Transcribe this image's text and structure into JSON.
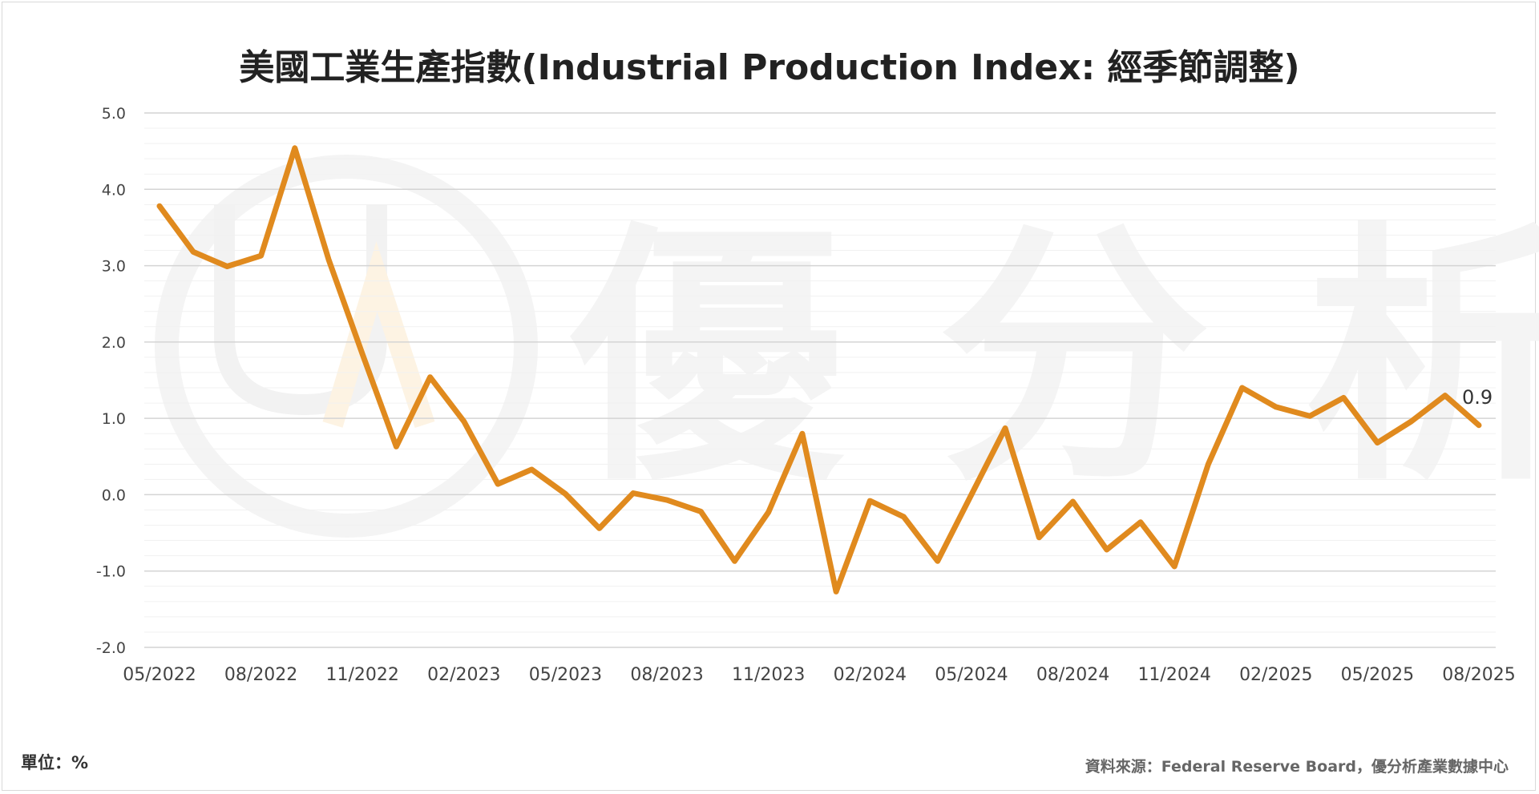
{
  "chart_data": {
    "type": "line",
    "title": "美國工業生產指數(Industrial Production Index: 經季節調整)",
    "unit_label": "單位：%",
    "source": "資料來源：Federal Reserve Board，優分析產業數據中心",
    "watermark_text": "優 分 析",
    "series": [
      {
        "values": [
          3.78,
          3.18,
          2.99,
          3.13,
          4.54,
          3.08,
          1.84,
          0.63,
          1.54,
          0.96,
          0.14,
          0.33,
          0.01,
          -0.44,
          0.02,
          -0.07,
          -0.22,
          -0.87,
          -0.23,
          0.8,
          -1.27,
          -0.08,
          -0.29,
          -0.87,
          0.0,
          0.87,
          -0.56,
          -0.09,
          -0.72,
          -0.36,
          -0.94,
          0.4,
          1.4,
          1.15,
          1.03,
          1.27,
          0.68,
          0.96,
          1.3,
          0.91
        ],
        "color": "#e08a1e"
      }
    ],
    "x_tick_labels": [
      "05/2022",
      "08/2022",
      "11/2022",
      "02/2023",
      "05/2023",
      "08/2023",
      "11/2023",
      "02/2024",
      "05/2024",
      "08/2024",
      "11/2024",
      "02/2025",
      "05/2025",
      "08/2025"
    ],
    "x_tick_every": 3,
    "ylim": [
      -2.0,
      5.0
    ],
    "y_ticks": [
      "5.0",
      "4.0",
      "3.0",
      "2.0",
      "1.0",
      "0.0",
      "-1.0",
      "-2.0"
    ],
    "last_value_label": "0.9",
    "grid": true,
    "legend": "none"
  }
}
